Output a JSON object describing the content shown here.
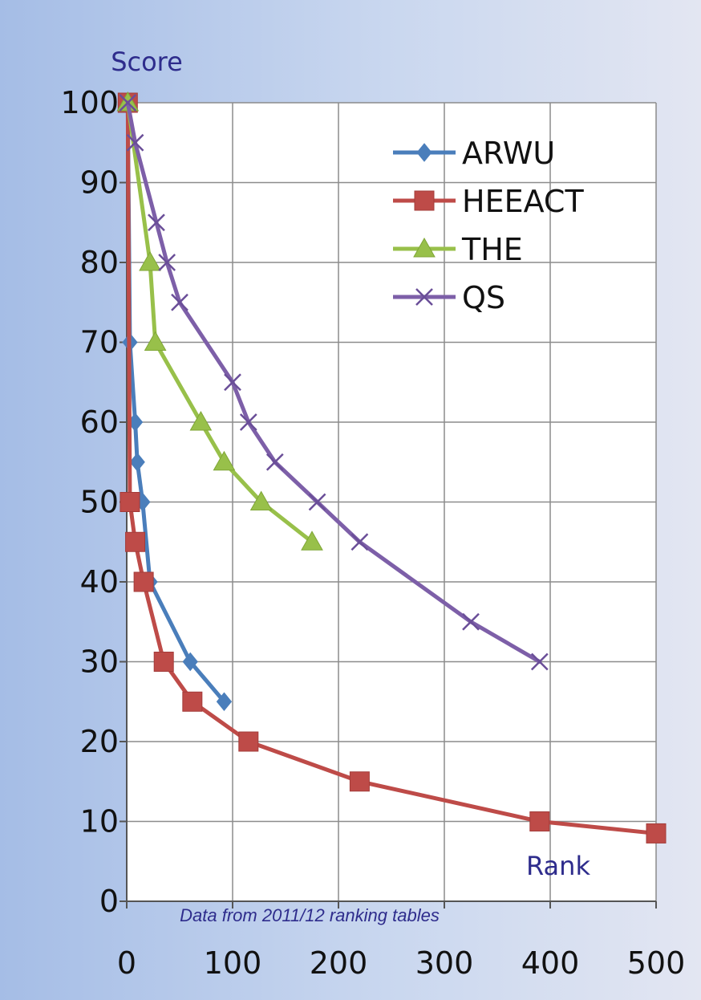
{
  "chart_data": {
    "type": "line",
    "ylabel": "Score",
    "xlabel": "Rank",
    "note": "Data from 2011/12  ranking tables",
    "xlim": [
      0,
      500
    ],
    "ylim": [
      0,
      100
    ],
    "xticks": [
      0,
      100,
      200,
      300,
      400,
      500
    ],
    "yticks": [
      0,
      10,
      20,
      30,
      40,
      50,
      60,
      70,
      80,
      90,
      100
    ],
    "grid": "vertical and horizontal",
    "legend_position": "top-right",
    "series": [
      {
        "name": "ARWU",
        "color": "#4a7ebb",
        "marker": "diamond",
        "x": [
          1,
          3,
          8,
          10,
          15,
          22,
          60,
          92
        ],
        "y": [
          100,
          70,
          60,
          55,
          50,
          40,
          30,
          25
        ]
      },
      {
        "name": "HEEACT",
        "color": "#be4b48",
        "marker": "square",
        "x": [
          1,
          3,
          8,
          16,
          35,
          62,
          115,
          220,
          390,
          500
        ],
        "y": [
          100,
          50,
          45,
          40,
          30,
          25,
          20,
          15,
          10,
          8.5
        ]
      },
      {
        "name": "THE",
        "color": "#98c04a",
        "marker": "triangle",
        "x": [
          1,
          22,
          27,
          70,
          92,
          127,
          175
        ],
        "y": [
          100,
          80,
          70,
          60,
          55,
          50,
          45
        ]
      },
      {
        "name": "QS",
        "color": "#7d5fa8",
        "marker": "x",
        "x": [
          1,
          8,
          28,
          38,
          50,
          100,
          115,
          140,
          180,
          220,
          325,
          390
        ],
        "y": [
          100,
          95,
          85,
          80,
          75,
          65,
          60,
          55,
          50,
          45,
          35,
          30
        ]
      }
    ]
  }
}
